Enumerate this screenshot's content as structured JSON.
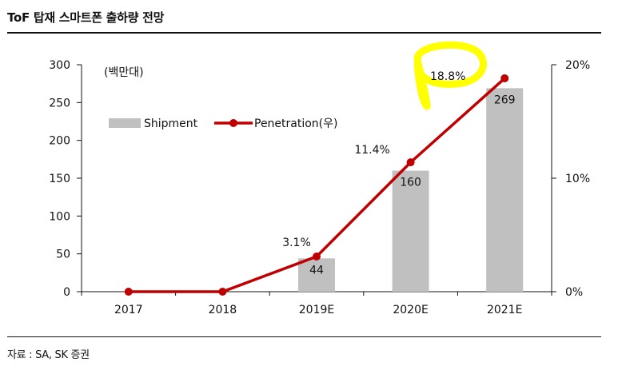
{
  "header": {
    "title": "ToF 탑재 스마트폰 출하량 전망"
  },
  "footer": {
    "source": "자료 : SA, SK 증권"
  },
  "chart_data": {
    "type": "bar",
    "categories": [
      "2017",
      "2018",
      "2019E",
      "2020E",
      "2021E"
    ],
    "unit_label": "(백만대)",
    "series": [
      {
        "name": "Shipment",
        "type": "bar",
        "axis": "left",
        "color": "#c0c0c0",
        "values": [
          null,
          null,
          44,
          160,
          269
        ],
        "labels": [
          "",
          "",
          "44",
          "160",
          "269"
        ]
      },
      {
        "name": "Penetration(우)",
        "type": "line",
        "axis": "right",
        "color": "#c00000",
        "values": [
          0,
          0,
          3.1,
          11.4,
          18.8
        ],
        "labels": [
          "",
          "",
          "3.1%",
          "11.4%",
          "18.8%"
        ]
      }
    ],
    "left_axis": {
      "ylim": [
        0,
        300
      ],
      "ticks": [
        "0",
        "50",
        "100",
        "150",
        "200",
        "250",
        "300"
      ]
    },
    "right_axis": {
      "ylim": [
        0,
        20
      ],
      "ticks": [
        "0%",
        "10%",
        "20%"
      ]
    },
    "annotation": {
      "highlighted_label": "18.8%",
      "highlight_color": "#ffff00"
    }
  }
}
